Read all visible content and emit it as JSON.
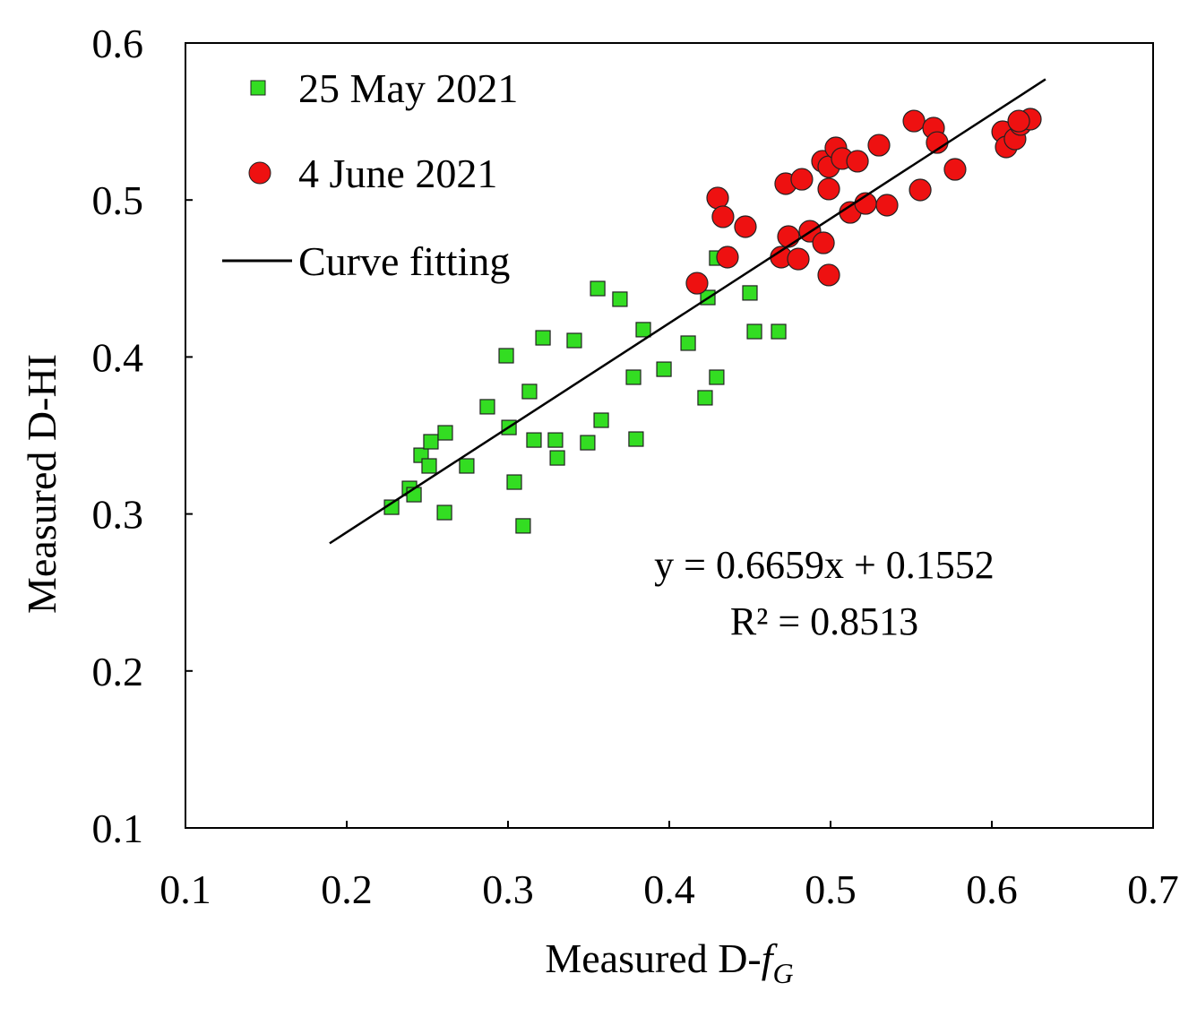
{
  "chart_data": {
    "type": "scatter",
    "xlabel": {
      "text": "Measured D-",
      "symbol": "f",
      "subscript": "G"
    },
    "ylabel": "Measured D-HI",
    "annotations": [
      "y = 0.6659x + 0.1552",
      "R² = 0.8513"
    ],
    "xlim": [
      0.1,
      0.7
    ],
    "xticks": [
      0.1,
      0.2,
      0.3,
      0.4,
      0.5,
      0.6,
      0.7
    ],
    "ylim": [
      0.1,
      0.6
    ],
    "yticks": [
      0.1,
      0.2,
      0.3,
      0.4,
      0.5,
      0.6
    ],
    "legend": "upper left",
    "series": [
      {
        "name": "25 May 2021",
        "color": "#33dd22",
        "marker": "square",
        "x": [
          0.2278,
          0.2389,
          0.2417,
          0.2461,
          0.2522,
          0.2511,
          0.2611,
          0.2606,
          0.2744,
          0.2872,
          0.2989,
          0.3006,
          0.3039,
          0.3094,
          0.3133,
          0.3161,
          0.3217,
          0.3294,
          0.3306,
          0.3411,
          0.3494,
          0.3556,
          0.3578,
          0.3694,
          0.3778,
          0.3794,
          0.3839,
          0.3967,
          0.4117,
          0.4222,
          0.4239,
          0.4294,
          0.4294,
          0.45,
          0.4528,
          0.4678
        ],
        "values": [
          0.3043,
          0.3163,
          0.3123,
          0.3374,
          0.346,
          0.3306,
          0.3517,
          0.3009,
          0.3306,
          0.3683,
          0.4008,
          0.3551,
          0.3203,
          0.2924,
          0.378,
          0.3471,
          0.4122,
          0.3471,
          0.3357,
          0.4105,
          0.3454,
          0.4436,
          0.3597,
          0.4368,
          0.3871,
          0.3477,
          0.4174,
          0.3922,
          0.4088,
          0.374,
          0.4379,
          0.463,
          0.3871,
          0.4408,
          0.4162,
          0.4162
        ]
      },
      {
        "name": "4 June 2021",
        "color": "#ee1111",
        "marker": "circle",
        "x": [
          0.4172,
          0.43,
          0.4333,
          0.4361,
          0.4472,
          0.4694,
          0.4722,
          0.4739,
          0.48,
          0.4822,
          0.4872,
          0.4956,
          0.4989,
          0.4989,
          0.495,
          0.4989,
          0.5033,
          0.5072,
          0.5122,
          0.5167,
          0.5217,
          0.53,
          0.535,
          0.5517,
          0.5556,
          0.5639,
          0.5661,
          0.5772,
          0.6067,
          0.6089,
          0.6144,
          0.6178,
          0.6239,
          0.6167
        ],
        "values": [
          0.447,
          0.5013,
          0.4893,
          0.4636,
          0.483,
          0.4636,
          0.5104,
          0.4767,
          0.4624,
          0.5132,
          0.4801,
          0.4727,
          0.4522,
          0.507,
          0.5247,
          0.5212,
          0.5332,
          0.5264,
          0.4921,
          0.5247,
          0.4978,
          0.5349,
          0.4967,
          0.5503,
          0.5064,
          0.5458,
          0.5366,
          0.5195,
          0.5435,
          0.5338,
          0.5389,
          0.5481,
          0.5515,
          0.5503
        ]
      },
      {
        "name": "Curve fitting",
        "color": "#000000",
        "marker": "line",
        "x": [
          0.1894,
          0.6333
        ],
        "values": [
          0.2813,
          0.5769
        ]
      }
    ]
  }
}
